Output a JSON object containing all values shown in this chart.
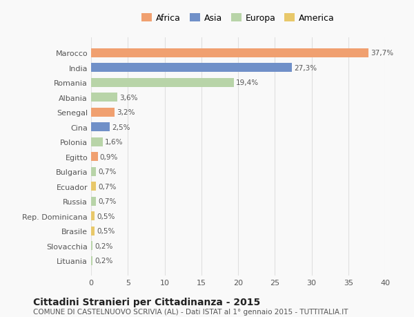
{
  "categories": [
    "Lituania",
    "Slovacchia",
    "Brasile",
    "Rep. Dominicana",
    "Russia",
    "Ecuador",
    "Bulgaria",
    "Egitto",
    "Polonia",
    "Cina",
    "Senegal",
    "Albania",
    "Romania",
    "India",
    "Marocco"
  ],
  "values": [
    0.2,
    0.2,
    0.5,
    0.5,
    0.7,
    0.7,
    0.7,
    0.9,
    1.6,
    2.5,
    3.2,
    3.6,
    19.4,
    27.3,
    37.7
  ],
  "labels": [
    "0,2%",
    "0,2%",
    "0,5%",
    "0,5%",
    "0,7%",
    "0,7%",
    "0,7%",
    "0,9%",
    "1,6%",
    "2,5%",
    "3,2%",
    "3,6%",
    "19,4%",
    "27,3%",
    "37,7%"
  ],
  "colors": [
    "#b8d4a8",
    "#b8d4a8",
    "#e8c86a",
    "#e8c86a",
    "#b8d4a8",
    "#e8c86a",
    "#b8d4a8",
    "#f0a070",
    "#b8d4a8",
    "#7090c8",
    "#f0a070",
    "#b8d4a8",
    "#b8d4a8",
    "#7090c8",
    "#f0a070"
  ],
  "legend_labels": [
    "Africa",
    "Asia",
    "Europa",
    "America"
  ],
  "legend_colors": [
    "#f0a070",
    "#7090c8",
    "#b8d4a8",
    "#e8c86a"
  ],
  "title": "Cittadini Stranieri per Cittadinanza - 2015",
  "subtitle": "COMUNE DI CASTELNUOVO SCRIVIA (AL) - Dati ISTAT al 1° gennaio 2015 - TUTTITALIA.IT",
  "xlim": [
    0,
    40
  ],
  "xticks": [
    0,
    5,
    10,
    15,
    20,
    25,
    30,
    35,
    40
  ],
  "bg_color": "#f9f9f9",
  "grid_color": "#e0e0e0"
}
